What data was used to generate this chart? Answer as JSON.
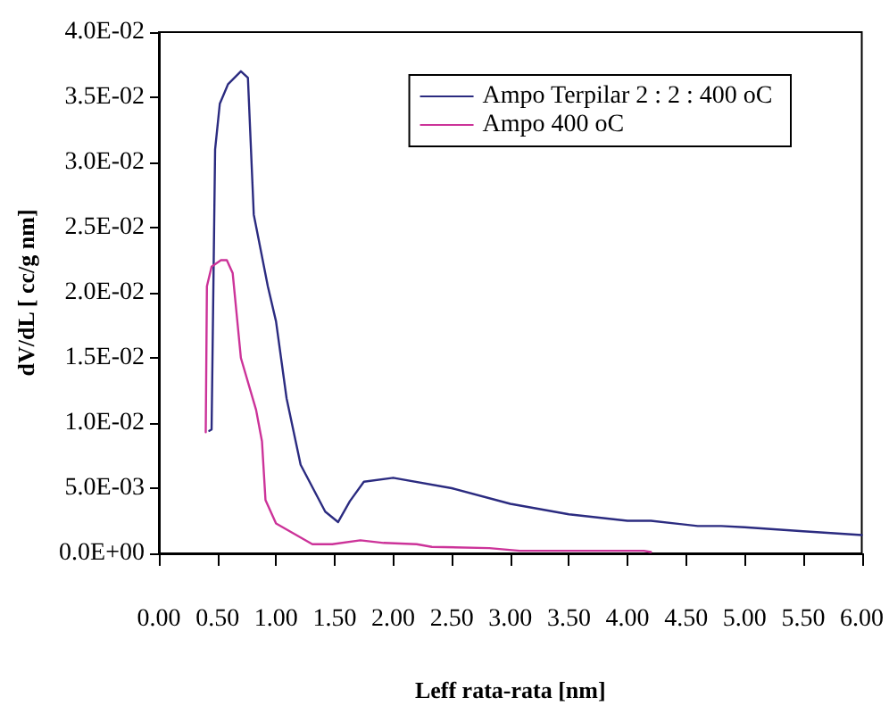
{
  "chart_data": {
    "type": "line",
    "xlabel": "Leff rata-rata [nm]",
    "ylabel": "dV/dL [ cc/g nm]",
    "xlim": [
      0,
      6
    ],
    "xticks": [
      {
        "value": 0,
        "label": "0.00"
      },
      {
        "value": 0.5,
        "label": "0.50"
      },
      {
        "value": 1,
        "label": "1.00"
      },
      {
        "value": 1.5,
        "label": "1.50"
      },
      {
        "value": 2,
        "label": "2.00"
      },
      {
        "value": 2.5,
        "label": "2.50"
      },
      {
        "value": 3,
        "label": "3.00"
      },
      {
        "value": 3.5,
        "label": "3.50"
      },
      {
        "value": 4,
        "label": "4.00"
      },
      {
        "value": 4.5,
        "label": "4.50"
      },
      {
        "value": 5,
        "label": "5.00"
      },
      {
        "value": 5.5,
        "label": "5.50"
      },
      {
        "value": 6,
        "label": "6.00"
      }
    ],
    "ylim": [
      0,
      0.04
    ],
    "yticks": [
      {
        "value": 0,
        "label": "0.0E+00"
      },
      {
        "value": 0.005,
        "label": "5.0E-03"
      },
      {
        "value": 0.01,
        "label": "1.0E-02"
      },
      {
        "value": 0.015,
        "label": "1.5E-02"
      },
      {
        "value": 0.02,
        "label": "2.0E-02"
      },
      {
        "value": 0.025,
        "label": "2.5E-02"
      },
      {
        "value": 0.03,
        "label": "3.0E-02"
      },
      {
        "value": 0.035,
        "label": "3.5E-02"
      },
      {
        "value": 0.04,
        "label": "4.0E-02"
      }
    ],
    "grid": false,
    "legend": "top right",
    "marker": "none",
    "line_style": "solid",
    "series": [
      {
        "name": "Ampo Terpilar 2 : 2 : 400 oC",
        "color": "#2b2b80",
        "x": [
          0.43,
          0.45,
          0.48,
          0.52,
          0.59,
          0.7,
          0.76,
          0.81,
          0.93,
          1.0,
          1.09,
          1.21,
          1.42,
          1.53,
          1.63,
          1.75,
          2.0,
          2.5,
          3.0,
          3.5,
          4.0,
          4.2,
          4.6,
          4.8,
          5.0,
          5.5,
          6.0
        ],
        "values": [
          0.0094,
          0.0095,
          0.031,
          0.0345,
          0.036,
          0.037,
          0.0365,
          0.026,
          0.0205,
          0.0178,
          0.0119,
          0.0068,
          0.0032,
          0.0024,
          0.004,
          0.0055,
          0.0058,
          0.005,
          0.0038,
          0.003,
          0.0025,
          0.0025,
          0.0021,
          0.0021,
          0.002,
          0.0017,
          0.0014
        ]
      },
      {
        "name": "Ampo 400 oC",
        "color": "#cc3399",
        "x": [
          0.4,
          0.41,
          0.45,
          0.53,
          0.58,
          0.63,
          0.7,
          0.83,
          0.88,
          0.91,
          1.0,
          1.31,
          1.48,
          1.72,
          1.92,
          2.2,
          2.33,
          2.82,
          3.08,
          4.14,
          4.2
        ],
        "values": [
          0.0093,
          0.0205,
          0.022,
          0.0225,
          0.0225,
          0.0215,
          0.015,
          0.011,
          0.0086,
          0.0041,
          0.0023,
          0.0007,
          0.0007,
          0.001,
          0.0008,
          0.0007,
          0.0005,
          0.0004,
          0.0002,
          0.0002,
          0.0001
        ]
      }
    ]
  }
}
